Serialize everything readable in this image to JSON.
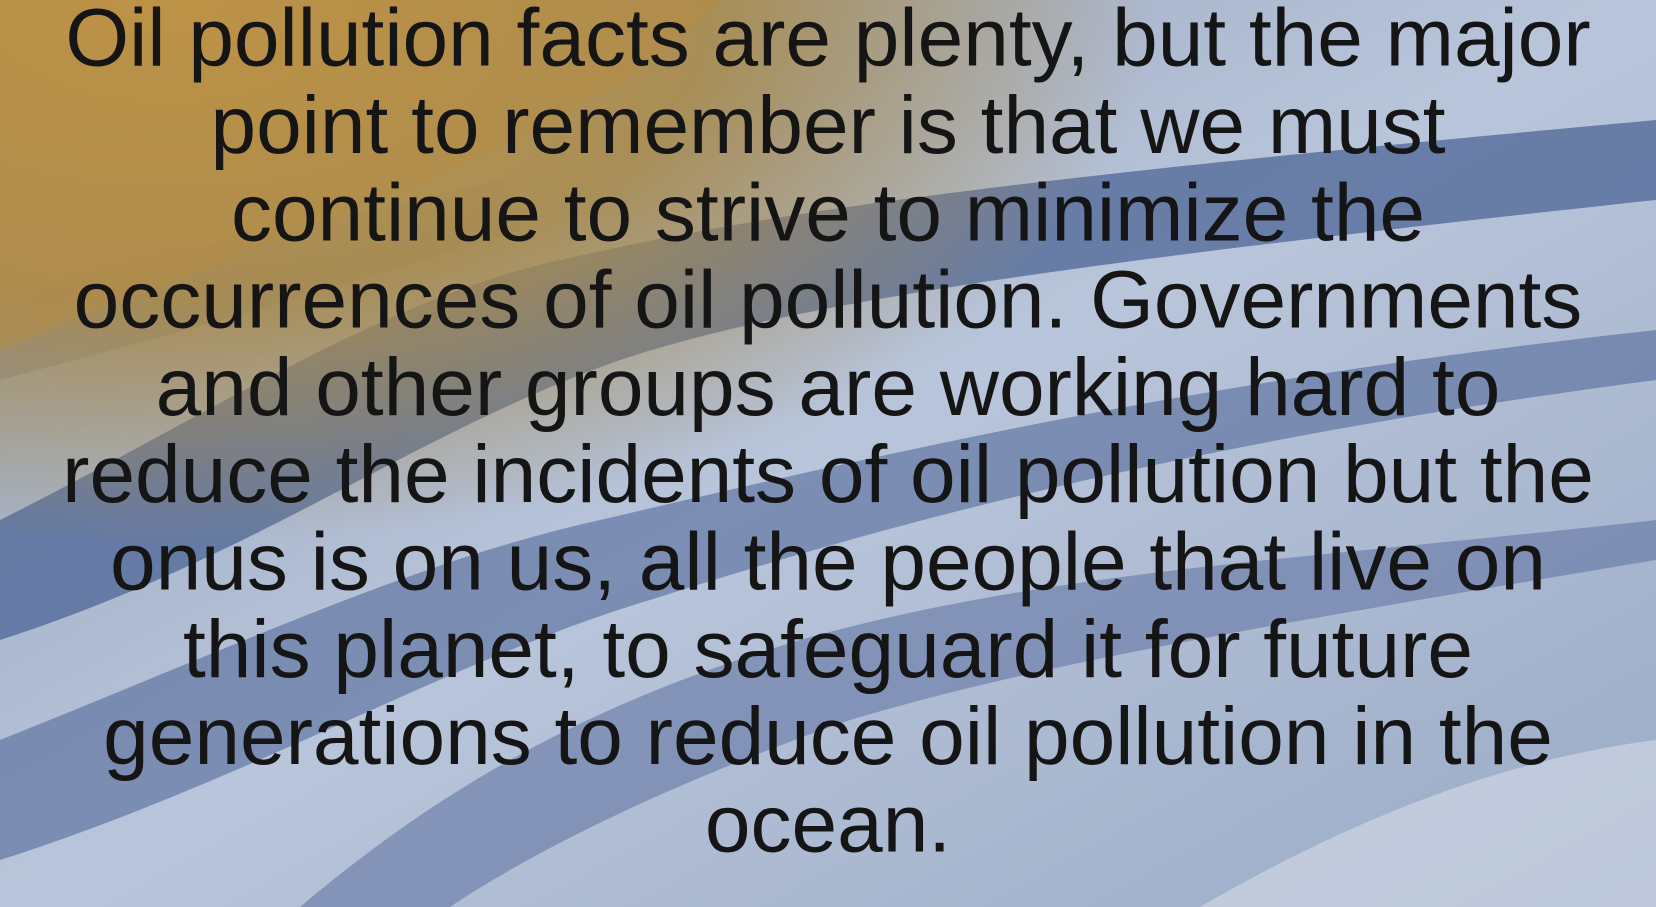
{
  "slide": {
    "lines": [
      "Oil pollution facts are plenty, but the major",
      "point to remember is that we must",
      "continue to strive to minimize the",
      "occurrences of oil pollution. Governments",
      "and other groups are working hard to",
      "reduce the incidents of oil pollution but the",
      "onus is on us, all the people that live on",
      "this planet, to safeguard it for future",
      "generations to reduce oil pollution in the",
      "ocean."
    ]
  }
}
